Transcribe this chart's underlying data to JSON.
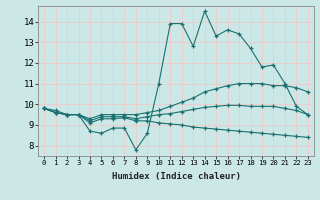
{
  "xlabel": "Humidex (Indice chaleur)",
  "xlim": [
    -0.5,
    23.5
  ],
  "ylim": [
    7.5,
    14.75
  ],
  "xtick_labels": [
    "0",
    "1",
    "2",
    "3",
    "4",
    "5",
    "6",
    "7",
    "8",
    "9",
    "10",
    "11",
    "12",
    "13",
    "14",
    "15",
    "16",
    "17",
    "18",
    "19",
    "20",
    "21",
    "22",
    "23"
  ],
  "ytick_values": [
    8,
    9,
    10,
    11,
    12,
    13,
    14
  ],
  "bg_color": "#cce8e6",
  "grid_color": "#f0c8c8",
  "line_color": "#1a7070",
  "series": [
    {
      "x": [
        0,
        1,
        2,
        3,
        4,
        5,
        6,
        7,
        8,
        9,
        10,
        11,
        12,
        13,
        14,
        15,
        16,
        17,
        18,
        19,
        20,
        21,
        22,
        23
      ],
      "y": [
        9.8,
        9.7,
        9.5,
        9.5,
        8.7,
        8.6,
        8.85,
        8.85,
        7.8,
        8.6,
        11.0,
        13.9,
        13.9,
        12.8,
        14.5,
        13.3,
        13.6,
        13.4,
        12.7,
        11.8,
        11.9,
        11.0,
        9.9,
        9.5
      ]
    },
    {
      "x": [
        0,
        1,
        2,
        3,
        4,
        5,
        6,
        7,
        8,
        9,
        10,
        11,
        12,
        13,
        14,
        15,
        16,
        17,
        18,
        19,
        20,
        21,
        22,
        23
      ],
      "y": [
        9.8,
        9.6,
        9.5,
        9.5,
        9.3,
        9.5,
        9.5,
        9.5,
        9.5,
        9.6,
        9.7,
        9.9,
        10.1,
        10.3,
        10.6,
        10.75,
        10.9,
        11.0,
        11.0,
        11.0,
        10.9,
        10.9,
        10.8,
        10.6
      ]
    },
    {
      "x": [
        0,
        1,
        2,
        3,
        4,
        5,
        6,
        7,
        8,
        9,
        10,
        11,
        12,
        13,
        14,
        15,
        16,
        17,
        18,
        19,
        20,
        21,
        22,
        23
      ],
      "y": [
        9.8,
        9.6,
        9.5,
        9.5,
        9.2,
        9.4,
        9.4,
        9.4,
        9.3,
        9.4,
        9.5,
        9.55,
        9.65,
        9.75,
        9.85,
        9.9,
        9.95,
        9.95,
        9.9,
        9.9,
        9.9,
        9.8,
        9.7,
        9.5
      ]
    },
    {
      "x": [
        0,
        1,
        2,
        3,
        4,
        5,
        6,
        7,
        8,
        9,
        10,
        11,
        12,
        13,
        14,
        15,
        16,
        17,
        18,
        19,
        20,
        21,
        22,
        23
      ],
      "y": [
        9.8,
        9.6,
        9.5,
        9.5,
        9.1,
        9.3,
        9.3,
        9.35,
        9.2,
        9.2,
        9.1,
        9.05,
        9.0,
        8.9,
        8.85,
        8.8,
        8.75,
        8.7,
        8.65,
        8.6,
        8.55,
        8.5,
        8.45,
        8.4
      ]
    }
  ]
}
